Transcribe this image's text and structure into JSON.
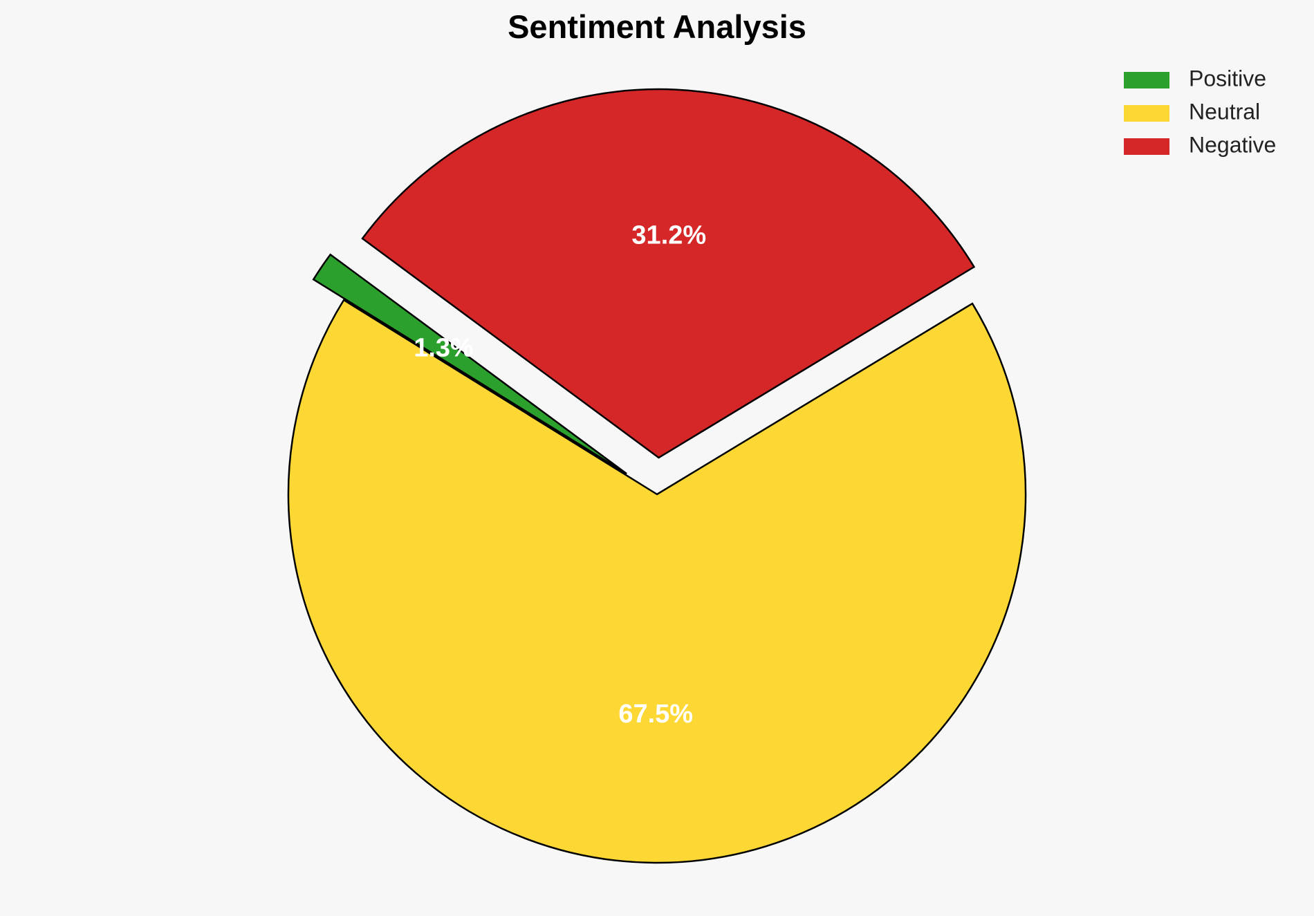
{
  "chart_data": {
    "type": "pie",
    "title": "Sentiment Analysis",
    "categories": [
      "Positive",
      "Neutral",
      "Negative"
    ],
    "values": [
      1.3,
      67.5,
      31.2
    ],
    "labels": [
      "1.3%",
      "67.5%",
      "31.2%"
    ],
    "colors": [
      "#2ca02c",
      "#fdd835",
      "#d62728"
    ],
    "exploded": [
      true,
      false,
      true
    ],
    "legend_position": "top-right"
  }
}
